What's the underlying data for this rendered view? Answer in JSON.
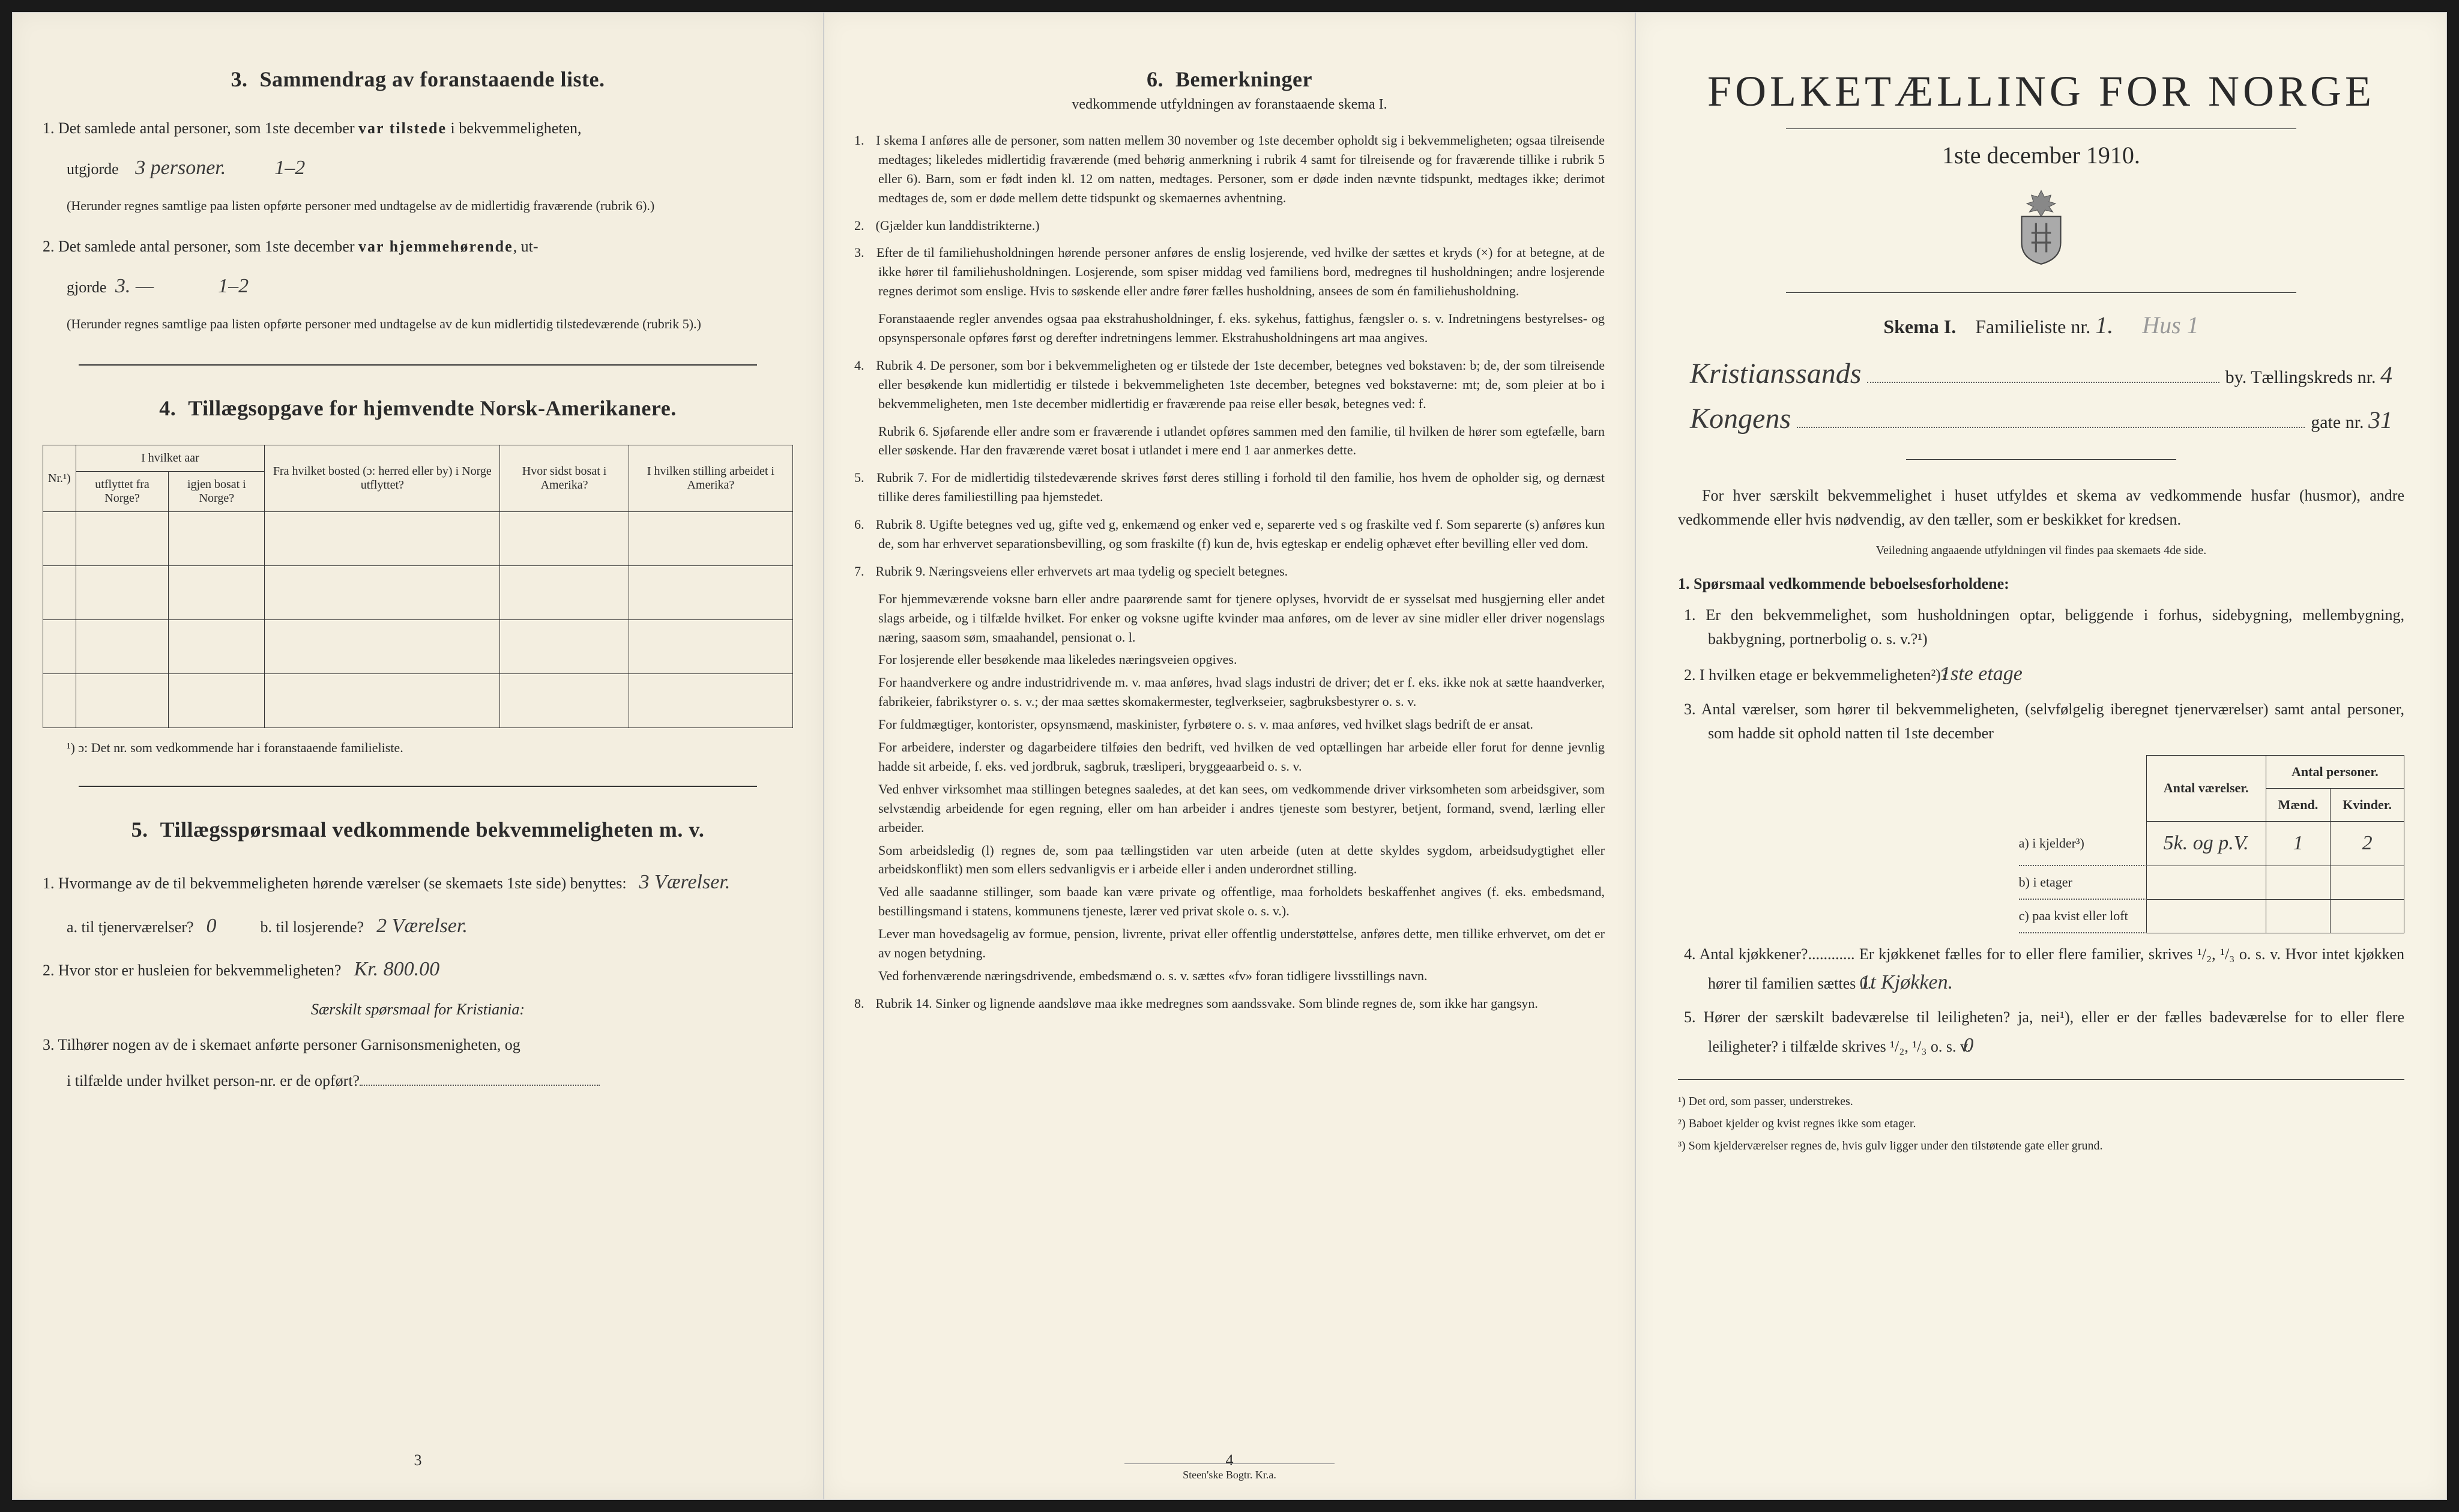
{
  "left": {
    "s3": {
      "title_num": "3.",
      "title": "Sammendrag av foranstaaende liste.",
      "q1_pre": "1.  Det samlede antal personer, som 1ste december",
      "q1_bold": "var tilstede",
      "q1_post": "i bekvemmeligheten,",
      "q1_label": "utgjorde",
      "q1_hand": "3 personer.",
      "q1_hand2": "1–2",
      "q1_note": "(Herunder regnes samtlige paa listen opførte personer med undtagelse av de midlertidig fraværende (rubrik 6).)",
      "q2_pre": "2.  Det samlede antal personer, som 1ste december",
      "q2_bold": "var hjemmehørende",
      "q2_post": ", ut-",
      "q2_label": "gjorde",
      "q2_hand": "3. —",
      "q2_hand2": "1–2",
      "q2_note": "(Herunder regnes samtlige paa listen opførte personer med undtagelse av de kun midlertidig tilstedeværende (rubrik 5).)"
    },
    "s4": {
      "title_num": "4.",
      "title": "Tillægsopgave for hjemvendte Norsk-Amerikanere.",
      "col1": "Nr.¹)",
      "col2_top": "I hvilket aar",
      "col2a": "utflyttet fra Norge?",
      "col2b": "igjen bosat i Norge?",
      "col3": "Fra hvilket bosted (ɔ: herred eller by) i Norge utflyttet?",
      "col4": "Hvor sidst bosat i Amerika?",
      "col5": "I hvilken stilling arbeidet i Amerika?",
      "footnote": "¹) ɔ: Det nr. som vedkommende har i foranstaaende familieliste."
    },
    "s5": {
      "title_num": "5.",
      "title": "Tillægsspørsmaal vedkommende bekvemmeligheten m. v.",
      "q1": "1.  Hvormange av de til bekvemmeligheten hørende værelser (se skemaets 1ste side) benyttes:",
      "q1_hand": "3 Værelser.",
      "q1a_label": "a.  til tjenerværelser?",
      "q1a_hand": "0",
      "q1b_label": "b.  til losjerende?",
      "q1b_hand": "2 Værelser.",
      "q2": "2.  Hvor stor er husleien for bekvemmeligheten?",
      "q2_hand": "Kr. 800.00",
      "q2_note": "Særskilt spørsmaal for Kristiania:",
      "q3": "3.  Tilhører nogen av de i skemaet anførte personer Garnisonsmenigheten, og",
      "q3b": "i tilfælde under hvilket person-nr. er de opført?"
    },
    "pagenum": "3"
  },
  "mid": {
    "title_num": "6.",
    "title": "Bemerkninger",
    "subtitle": "vedkommende utfyldningen av foranstaaende skema I.",
    "items": [
      {
        "n": "1.",
        "t": "I skema I anføres alle de personer, som natten mellem 30 november og 1ste december opholdt sig i bekvemmeligheten; ogsaa tilreisende medtages; likeledes midlertidig fraværende (med behørig anmerkning i rubrik 4 samt for tilreisende og for fraværende tillike i rubrik 5 eller 6). Barn, som er født inden kl. 12 om natten, medtages. Personer, som er døde inden nævnte tidspunkt, medtages ikke; derimot medtages de, som er døde mellem dette tidspunkt og skemaernes avhentning."
      },
      {
        "n": "2.",
        "t": "(Gjælder kun landdistrikterne.)"
      },
      {
        "n": "3.",
        "t": "Efter de til familiehusholdningen hørende personer anføres de enslig losjerende, ved hvilke der sættes et kryds (×) for at betegne, at de ikke hører til familiehusholdningen. Losjerende, som spiser middag ved familiens bord, medregnes til husholdningen; andre losjerende regnes derimot som enslige. Hvis to søskende eller andre fører fælles husholdning, ansees de som én familiehusholdning.",
        "p": "Foranstaaende regler anvendes ogsaa paa ekstrahusholdninger, f. eks. sykehus, fattighus, fængsler o. s. v. Indretningens bestyrelses- og opsynspersonale opføres først og derefter indretningens lemmer. Ekstrahusholdningens art maa angives."
      },
      {
        "n": "4.",
        "t": "Rubrik 4. De personer, som bor i bekvemmeligheten og er tilstede der 1ste december, betegnes ved bokstaven: b; de, der som tilreisende eller besøkende kun midlertidig er tilstede i bekvemmeligheten 1ste december, betegnes ved bokstaverne: mt; de, som pleier at bo i bekvemmeligheten, men 1ste december midlertidig er fraværende paa reise eller besøk, betegnes ved: f.",
        "p": "Rubrik 6. Sjøfarende eller andre som er fraværende i utlandet opføres sammen med den familie, til hvilken de hører som egtefælle, barn eller søskende. Har den fraværende været bosat i utlandet i mere end 1 aar anmerkes dette."
      },
      {
        "n": "5.",
        "t": "Rubrik 7. For de midlertidig tilstedeværende skrives først deres stilling i forhold til den familie, hos hvem de opholder sig, og dernæst tillike deres familiestilling paa hjemstedet."
      },
      {
        "n": "6.",
        "t": "Rubrik 8. Ugifte betegnes ved ug, gifte ved g, enkemænd og enker ved e, separerte ved s og fraskilte ved f. Som separerte (s) anføres kun de, som har erhvervet separationsbevilling, og som fraskilte (f) kun de, hvis egteskap er endelig ophævet efter bevilling eller ved dom."
      },
      {
        "n": "7.",
        "t": "Rubrik 9. Næringsveiens eller erhvervets art maa tydelig og specielt betegnes.",
        "extra": [
          "For hjemmeværende voksne barn eller andre paarørende samt for tjenere oplyses, hvorvidt de er sysselsat med husgjerning eller andet slags arbeide, og i tilfælde hvilket. For enker og voksne ugifte kvinder maa anføres, om de lever av sine midler eller driver nogenslags næring, saasom søm, smaahandel, pensionat o. l.",
          "For losjerende eller besøkende maa likeledes næringsveien opgives.",
          "For haandverkere og andre industridrivende m. v. maa anføres, hvad slags industri de driver; det er f. eks. ikke nok at sætte haandverker, fabrikeier, fabrikstyrer o. s. v.; der maa sættes skomakermester, teglverkseier, sagbruksbestyrer o. s. v.",
          "For fuldmægtiger, kontorister, opsynsmænd, maskinister, fyrbøtere o. s. v. maa anføres, ved hvilket slags bedrift de er ansat.",
          "For arbeidere, inderster og dagarbeidere tilføies den bedrift, ved hvilken de ved optællingen har arbeide eller forut for denne jevnlig hadde sit arbeide, f. eks. ved jordbruk, sagbruk, træsliperi, bryggeaarbeid o. s. v.",
          "Ved enhver virksomhet maa stillingen betegnes saaledes, at det kan sees, om vedkommende driver virksomheten som arbeidsgiver, som selvstændig arbeidende for egen regning, eller om han arbeider i andres tjeneste som bestyrer, betjent, formand, svend, lærling eller arbeider.",
          "Som arbeidsledig (l) regnes de, som paa tællingstiden var uten arbeide (uten at dette skyldes sygdom, arbeidsudygtighet eller arbeidskonflikt) men som ellers sedvanligvis er i arbeide eller i anden underordnet stilling.",
          "Ved alle saadanne stillinger, som baade kan være private og offentlige, maa forholdets beskaffenhet angives (f. eks. embedsmand, bestillingsmand i statens, kommunens tjeneste, lærer ved privat skole o. s. v.).",
          "Lever man hovedsagelig av formue, pension, livrente, privat eller offentlig understøttelse, anføres dette, men tillike erhvervet, om det er av nogen betydning.",
          "Ved forhenværende næringsdrivende, embedsmænd o. s. v. sættes «fv» foran tidligere livsstillings navn."
        ]
      },
      {
        "n": "8.",
        "t": "Rubrik 14. Sinker og lignende aandsløve maa ikke medregnes som aandssvake. Som blinde regnes de, som ikke har gangsyn."
      }
    ],
    "pagenum": "4",
    "printer": "Steen'ske Bogtr. Kr.a."
  },
  "right": {
    "main_title": "FOLKETÆLLING FOR NORGE",
    "date": "1ste december 1910.",
    "skema": "Skema I.",
    "fam_label": "Familieliste nr.",
    "fam_hand": "1.",
    "fam_hand2": "Hus 1",
    "city_hand": "Kristianssands",
    "city_suffix": "by.  Tællingskreds nr.",
    "kreds_hand": "4",
    "street_hand": "Kongens",
    "street_suffix": "gate nr.",
    "street_num": "31",
    "intro": "For hver særskilt bekvemmelighet i huset utfyldes et skema av vedkommende husfar (husmor), andre vedkommende eller hvis nødvendig, av den tæller, som er beskikket for kredsen.",
    "intro_note": "Veiledning angaaende utfyldningen vil findes paa skemaets 4de side.",
    "section1_title": "1. Spørsmaal vedkommende beboelsesforholdene:",
    "q1": "1.  Er den bekvemmelighet, som husholdningen optar, beliggende i forhus, sidebygning, mellembygning, bakbygning, portnerbolig o. s. v.?¹)",
    "q2": "2.  I hvilken etage er bekvemmeligheten²)?",
    "q2_hand": "1ste etage",
    "q3": "3.  Antal værelser, som hører til bekvemmeligheten, (selvfølgelig iberegnet tjenerværelser) samt antal personer, som hadde sit ophold natten til 1ste december",
    "table": {
      "h1": "Antal værelser.",
      "h2": "Antal personer.",
      "h2a": "Mænd.",
      "h2b": "Kvinder.",
      "rows": [
        {
          "label": "a) i kjelder³)",
          "v": "5k. og p.V.",
          "m": "1",
          "k": "2"
        },
        {
          "label": "b) i etager",
          "v": "",
          "m": "",
          "k": ""
        },
        {
          "label": "c) paa kvist eller loft",
          "v": "",
          "m": "",
          "k": ""
        }
      ]
    },
    "q4": "4.  Antal kjøkkener?............  Er kjøkkenet fælles for to eller flere familier, skrives ¹/₂, ¹/₃ o. s. v.  Hvor intet kjøkken hører til familien sættes 0.",
    "q4_hand": "1t Kjøkken.",
    "q5": "5.  Hører der særskilt badeværelse til leiligheten?  ja, nei¹), eller er der fælles badeværelse for to eller flere leiligheter?  i tilfælde skrives ¹/₂, ¹/₃ o. s. v.",
    "q5_hand": "0",
    "fn1": "¹) Det ord, som passer, understrekes.",
    "fn2": "²) Baboet kjelder og kvist regnes ikke som etager.",
    "fn3": "³) Som kjelderværelser regnes de, hvis gulv ligger under den tilstøtende gate eller grund."
  }
}
